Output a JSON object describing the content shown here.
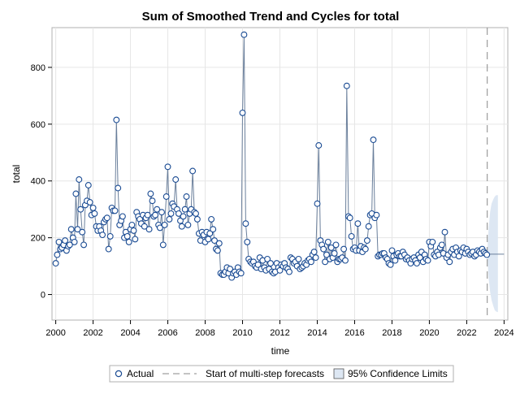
{
  "chart_data": {
    "type": "line",
    "title": "Sum of Smoothed Trend and Cycles for total",
    "xlabel": "time",
    "ylabel": "total",
    "xlim": [
      1999.8,
      2024.2
    ],
    "ylim": [
      -90,
      940
    ],
    "xticks": [
      2000,
      2002,
      2004,
      2006,
      2008,
      2010,
      2012,
      2014,
      2016,
      2018,
      2020,
      2022,
      2024
    ],
    "yticks": [
      0,
      200,
      400,
      600,
      800
    ],
    "grid": true,
    "legend_position": "bottom",
    "legend": {
      "actual": "Actual",
      "forecast_start": "Start of multi-step forecasts",
      "confidence": "95% Confidence Limits"
    },
    "forecast_start_x": 2023.1,
    "colors": {
      "actual": "#1a4b93",
      "trend": "#6a7f9b",
      "band": "#dde7f3",
      "grid": "#e6e6e6",
      "dash": "#888888"
    },
    "actual": [
      [
        2000.0,
        110
      ],
      [
        2000.08,
        140
      ],
      [
        2000.17,
        185
      ],
      [
        2000.25,
        160
      ],
      [
        2000.33,
        165
      ],
      [
        2000.42,
        175
      ],
      [
        2000.5,
        190
      ],
      [
        2000.58,
        155
      ],
      [
        2000.67,
        170
      ],
      [
        2000.75,
        175
      ],
      [
        2000.83,
        230
      ],
      [
        2000.92,
        200
      ],
      [
        2001.0,
        185
      ],
      [
        2001.08,
        355
      ],
      [
        2001.17,
        230
      ],
      [
        2001.25,
        405
      ],
      [
        2001.33,
        300
      ],
      [
        2001.42,
        220
      ],
      [
        2001.5,
        175
      ],
      [
        2001.58,
        315
      ],
      [
        2001.67,
        330
      ],
      [
        2001.75,
        385
      ],
      [
        2001.83,
        325
      ],
      [
        2001.92,
        280
      ],
      [
        2002.0,
        305
      ],
      [
        2002.08,
        285
      ],
      [
        2002.17,
        240
      ],
      [
        2002.25,
        225
      ],
      [
        2002.33,
        240
      ],
      [
        2002.42,
        225
      ],
      [
        2002.5,
        210
      ],
      [
        2002.58,
        255
      ],
      [
        2002.67,
        265
      ],
      [
        2002.75,
        270
      ],
      [
        2002.83,
        160
      ],
      [
        2002.92,
        205
      ],
      [
        2003.0,
        305
      ],
      [
        2003.08,
        295
      ],
      [
        2003.17,
        295
      ],
      [
        2003.25,
        615
      ],
      [
        2003.33,
        375
      ],
      [
        2003.42,
        245
      ],
      [
        2003.5,
        260
      ],
      [
        2003.58,
        275
      ],
      [
        2003.67,
        200
      ],
      [
        2003.75,
        220
      ],
      [
        2003.83,
        205
      ],
      [
        2003.92,
        185
      ],
      [
        2004.0,
        230
      ],
      [
        2004.08,
        245
      ],
      [
        2004.17,
        225
      ],
      [
        2004.25,
        195
      ],
      [
        2004.33,
        290
      ],
      [
        2004.42,
        275
      ],
      [
        2004.5,
        265
      ],
      [
        2004.58,
        250
      ],
      [
        2004.67,
        280
      ],
      [
        2004.75,
        240
      ],
      [
        2004.83,
        270
      ],
      [
        2004.92,
        280
      ],
      [
        2005.0,
        230
      ],
      [
        2005.08,
        355
      ],
      [
        2005.17,
        330
      ],
      [
        2005.25,
        275
      ],
      [
        2005.33,
        280
      ],
      [
        2005.42,
        300
      ],
      [
        2005.5,
        245
      ],
      [
        2005.58,
        235
      ],
      [
        2005.67,
        290
      ],
      [
        2005.75,
        175
      ],
      [
        2005.83,
        245
      ],
      [
        2005.92,
        345
      ],
      [
        2006.0,
        450
      ],
      [
        2006.08,
        265
      ],
      [
        2006.17,
        285
      ],
      [
        2006.25,
        320
      ],
      [
        2006.33,
        310
      ],
      [
        2006.42,
        405
      ],
      [
        2006.5,
        300
      ],
      [
        2006.58,
        285
      ],
      [
        2006.67,
        260
      ],
      [
        2006.75,
        240
      ],
      [
        2006.83,
        275
      ],
      [
        2006.92,
        300
      ],
      [
        2007.0,
        345
      ],
      [
        2007.08,
        245
      ],
      [
        2007.17,
        285
      ],
      [
        2007.25,
        300
      ],
      [
        2007.33,
        435
      ],
      [
        2007.42,
        290
      ],
      [
        2007.5,
        285
      ],
      [
        2007.58,
        265
      ],
      [
        2007.67,
        215
      ],
      [
        2007.75,
        190
      ],
      [
        2007.83,
        220
      ],
      [
        2007.92,
        210
      ],
      [
        2008.0,
        185
      ],
      [
        2008.08,
        220
      ],
      [
        2008.17,
        195
      ],
      [
        2008.25,
        215
      ],
      [
        2008.33,
        265
      ],
      [
        2008.42,
        230
      ],
      [
        2008.5,
        190
      ],
      [
        2008.58,
        160
      ],
      [
        2008.67,
        155
      ],
      [
        2008.75,
        180
      ],
      [
        2008.83,
        75
      ],
      [
        2008.92,
        70
      ],
      [
        2009.0,
        70
      ],
      [
        2009.08,
        80
      ],
      [
        2009.17,
        95
      ],
      [
        2009.25,
        75
      ],
      [
        2009.33,
        90
      ],
      [
        2009.42,
        60
      ],
      [
        2009.5,
        75
      ],
      [
        2009.58,
        80
      ],
      [
        2009.67,
        70
      ],
      [
        2009.75,
        95
      ],
      [
        2009.83,
        80
      ],
      [
        2009.92,
        75
      ],
      [
        2010.0,
        640
      ],
      [
        2010.08,
        915
      ],
      [
        2010.17,
        250
      ],
      [
        2010.25,
        185
      ],
      [
        2010.33,
        125
      ],
      [
        2010.42,
        115
      ],
      [
        2010.5,
        110
      ],
      [
        2010.58,
        115
      ],
      [
        2010.67,
        100
      ],
      [
        2010.75,
        95
      ],
      [
        2010.83,
        105
      ],
      [
        2010.92,
        130
      ],
      [
        2011.0,
        90
      ],
      [
        2011.08,
        120
      ],
      [
        2011.17,
        95
      ],
      [
        2011.25,
        85
      ],
      [
        2011.33,
        125
      ],
      [
        2011.42,
        90
      ],
      [
        2011.5,
        110
      ],
      [
        2011.58,
        80
      ],
      [
        2011.67,
        75
      ],
      [
        2011.75,
        80
      ],
      [
        2011.83,
        110
      ],
      [
        2011.92,
        95
      ],
      [
        2012.0,
        85
      ],
      [
        2012.08,
        105
      ],
      [
        2012.17,
        100
      ],
      [
        2012.25,
        110
      ],
      [
        2012.33,
        95
      ],
      [
        2012.42,
        90
      ],
      [
        2012.5,
        80
      ],
      [
        2012.58,
        130
      ],
      [
        2012.67,
        125
      ],
      [
        2012.75,
        110
      ],
      [
        2012.83,
        115
      ],
      [
        2012.92,
        100
      ],
      [
        2013.0,
        125
      ],
      [
        2013.08,
        90
      ],
      [
        2013.17,
        95
      ],
      [
        2013.25,
        100
      ],
      [
        2013.33,
        110
      ],
      [
        2013.42,
        105
      ],
      [
        2013.5,
        120
      ],
      [
        2013.58,
        125
      ],
      [
        2013.67,
        115
      ],
      [
        2013.75,
        140
      ],
      [
        2013.83,
        150
      ],
      [
        2013.92,
        130
      ],
      [
        2014.0,
        320
      ],
      [
        2014.08,
        525
      ],
      [
        2014.17,
        190
      ],
      [
        2014.25,
        175
      ],
      [
        2014.33,
        160
      ],
      [
        2014.42,
        115
      ],
      [
        2014.5,
        140
      ],
      [
        2014.58,
        185
      ],
      [
        2014.67,
        125
      ],
      [
        2014.75,
        165
      ],
      [
        2014.83,
        130
      ],
      [
        2014.92,
        145
      ],
      [
        2015.0,
        175
      ],
      [
        2015.08,
        115
      ],
      [
        2015.17,
        125
      ],
      [
        2015.25,
        125
      ],
      [
        2015.33,
        130
      ],
      [
        2015.42,
        160
      ],
      [
        2015.5,
        120
      ],
      [
        2015.58,
        735
      ],
      [
        2015.67,
        275
      ],
      [
        2015.75,
        270
      ],
      [
        2015.83,
        205
      ],
      [
        2015.92,
        160
      ],
      [
        2016.0,
        165
      ],
      [
        2016.08,
        155
      ],
      [
        2016.17,
        250
      ],
      [
        2016.25,
        155
      ],
      [
        2016.33,
        170
      ],
      [
        2016.42,
        150
      ],
      [
        2016.5,
        165
      ],
      [
        2016.58,
        160
      ],
      [
        2016.67,
        190
      ],
      [
        2016.75,
        240
      ],
      [
        2016.83,
        280
      ],
      [
        2016.92,
        285
      ],
      [
        2017.0,
        545
      ],
      [
        2017.08,
        270
      ],
      [
        2017.17,
        280
      ],
      [
        2017.25,
        135
      ],
      [
        2017.33,
        140
      ],
      [
        2017.42,
        140
      ],
      [
        2017.5,
        145
      ],
      [
        2017.58,
        145
      ],
      [
        2017.67,
        130
      ],
      [
        2017.75,
        125
      ],
      [
        2017.83,
        110
      ],
      [
        2017.92,
        105
      ],
      [
        2018.0,
        155
      ],
      [
        2018.08,
        135
      ],
      [
        2018.17,
        120
      ],
      [
        2018.25,
        140
      ],
      [
        2018.33,
        145
      ],
      [
        2018.42,
        135
      ],
      [
        2018.5,
        135
      ],
      [
        2018.58,
        150
      ],
      [
        2018.67,
        140
      ],
      [
        2018.75,
        125
      ],
      [
        2018.83,
        130
      ],
      [
        2018.92,
        120
      ],
      [
        2019.0,
        110
      ],
      [
        2019.08,
        125
      ],
      [
        2019.17,
        130
      ],
      [
        2019.25,
        120
      ],
      [
        2019.33,
        110
      ],
      [
        2019.42,
        140
      ],
      [
        2019.5,
        130
      ],
      [
        2019.58,
        150
      ],
      [
        2019.67,
        115
      ],
      [
        2019.75,
        140
      ],
      [
        2019.83,
        125
      ],
      [
        2019.92,
        120
      ],
      [
        2020.0,
        185
      ],
      [
        2020.08,
        170
      ],
      [
        2020.17,
        185
      ],
      [
        2020.25,
        140
      ],
      [
        2020.33,
        135
      ],
      [
        2020.42,
        150
      ],
      [
        2020.5,
        140
      ],
      [
        2020.58,
        165
      ],
      [
        2020.67,
        175
      ],
      [
        2020.75,
        145
      ],
      [
        2020.83,
        220
      ],
      [
        2020.92,
        130
      ],
      [
        2021.0,
        140
      ],
      [
        2021.08,
        115
      ],
      [
        2021.17,
        150
      ],
      [
        2021.25,
        160
      ],
      [
        2021.33,
        140
      ],
      [
        2021.42,
        165
      ],
      [
        2021.5,
        150
      ],
      [
        2021.58,
        135
      ],
      [
        2021.67,
        155
      ],
      [
        2021.75,
        150
      ],
      [
        2021.83,
        165
      ],
      [
        2021.92,
        145
      ],
      [
        2022.0,
        160
      ],
      [
        2022.08,
        150
      ],
      [
        2022.17,
        140
      ],
      [
        2022.25,
        145
      ],
      [
        2022.33,
        150
      ],
      [
        2022.42,
        135
      ],
      [
        2022.5,
        140
      ],
      [
        2022.58,
        155
      ],
      [
        2022.67,
        150
      ],
      [
        2022.75,
        145
      ],
      [
        2022.83,
        160
      ],
      [
        2022.92,
        150
      ],
      [
        2023.0,
        145
      ],
      [
        2023.08,
        140
      ]
    ],
    "forecast": [
      [
        2023.1,
        142
      ],
      [
        2024.0,
        142
      ]
    ],
    "confidence_band": [
      [
        2023.1,
        142,
        142
      ],
      [
        2023.17,
        60,
        230
      ],
      [
        2023.25,
        10,
        290
      ],
      [
        2023.33,
        -20,
        320
      ],
      [
        2023.42,
        -40,
        335
      ],
      [
        2023.5,
        -55,
        345
      ],
      [
        2023.58,
        -60,
        350
      ],
      [
        2023.67,
        -62,
        350
      ]
    ]
  }
}
